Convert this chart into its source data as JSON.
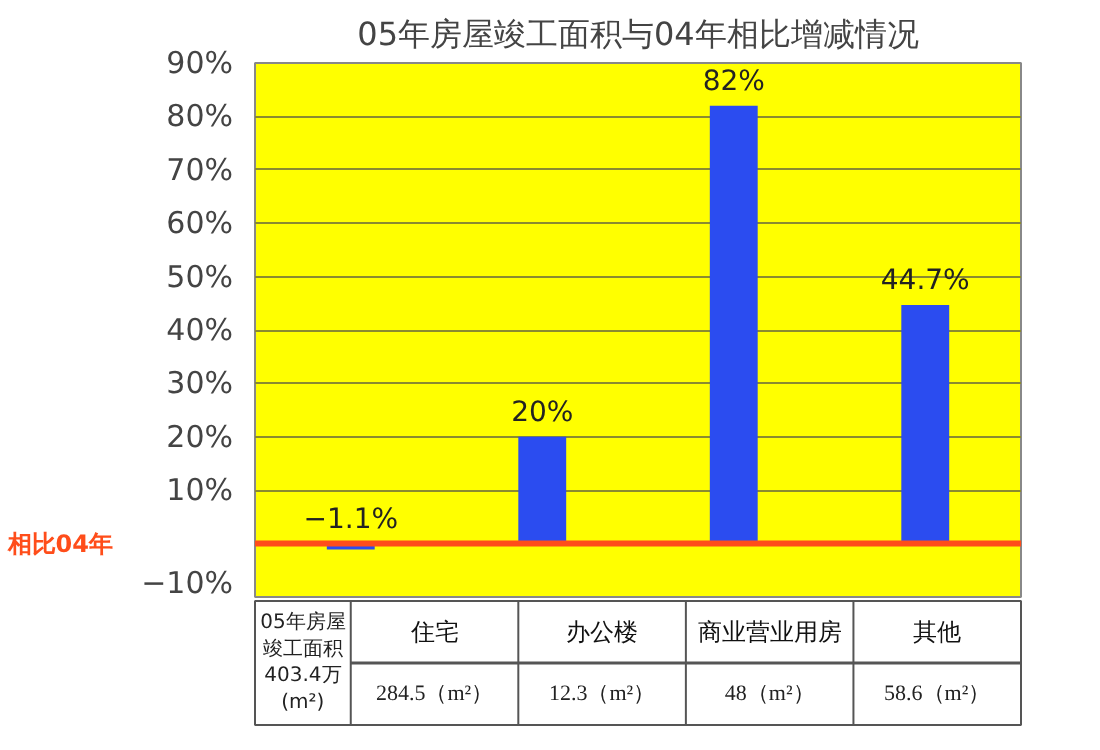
{
  "chart_data": {
    "type": "bar",
    "title": "05年房屋竣工面积与04年相比增减情况",
    "categories": [
      "住宅",
      "办公楼",
      "商业营业用房",
      "其他"
    ],
    "series": [
      {
        "color": "#2b4cf0",
        "values": [
          -1.1,
          20,
          82,
          44.7
        ],
        "value_labels": [
          "−1.1%",
          "20%",
          "82%",
          "44.7%"
        ]
      }
    ],
    "ylim": [
      -10,
      90
    ],
    "yticks": [
      {
        "value": -10,
        "label": "−10%"
      },
      {
        "value": 10,
        "label": "10%"
      },
      {
        "value": 20,
        "label": "20%"
      },
      {
        "value": 30,
        "label": "30%"
      },
      {
        "value": 40,
        "label": "40%"
      },
      {
        "value": 50,
        "label": "50%"
      },
      {
        "value": 60,
        "label": "60%"
      },
      {
        "value": 70,
        "label": "70%"
      },
      {
        "value": 80,
        "label": "80%"
      },
      {
        "value": 90,
        "label": "90%"
      }
    ],
    "ref_lines": [
      {
        "axis": "y",
        "value": 0,
        "label": "相比04年",
        "color": "#ff4d1a"
      }
    ],
    "annotations": [
      "05年房屋竣工面积403.4万(m²)",
      "284.5（m²）",
      "12.3（m²）",
      "48（m²）",
      "58.6（m²）"
    ],
    "grid": "y",
    "tick_labels": "y"
  }
}
